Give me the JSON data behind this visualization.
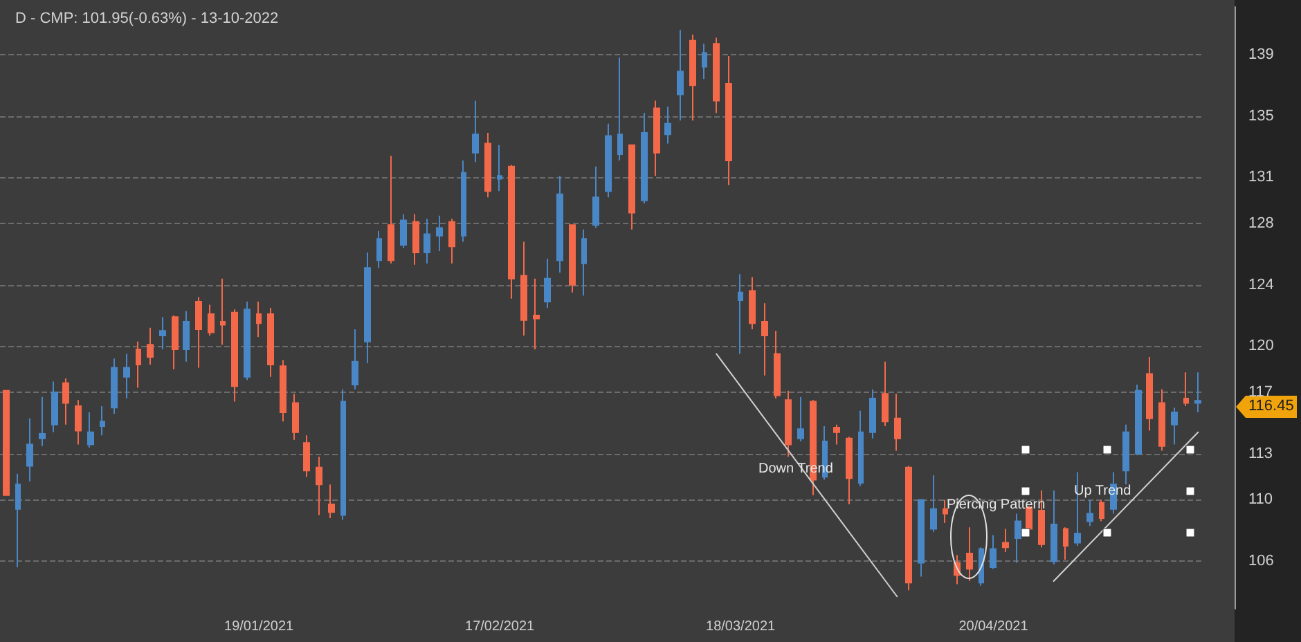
{
  "chart_data": {
    "type": "candlestick",
    "title": "D - CMP: 101.95(-0.63%) - 13-10-2022",
    "categories": [
      null,
      null,
      null,
      null,
      null,
      null,
      null,
      null,
      null,
      null,
      null,
      null,
      null,
      null,
      null,
      null,
      null,
      null,
      null,
      null,
      null,
      "19/01/2021",
      null,
      null,
      null,
      null,
      null,
      null,
      null,
      null,
      null,
      null,
      null,
      null,
      null,
      null,
      null,
      null,
      null,
      null,
      null,
      "17/02/2021",
      null,
      null,
      null,
      null,
      null,
      null,
      null,
      null,
      null,
      null,
      null,
      null,
      null,
      null,
      null,
      null,
      null,
      null,
      null,
      "18/03/2021",
      null,
      null,
      null,
      null,
      null,
      null,
      null,
      null,
      null,
      null,
      null,
      null,
      null,
      null,
      null,
      null,
      null,
      null,
      null,
      null,
      "20/04/2021",
      null,
      null,
      null,
      null,
      null,
      null,
      null,
      null,
      null,
      null,
      null,
      null,
      null,
      null,
      null,
      null,
      null
    ],
    "series": [
      {
        "ohlc": [
          [
            117.1,
            117.1,
            110.3,
            110.3
          ],
          [
            109.4,
            111.7,
            105.6,
            111.0
          ],
          [
            112.2,
            115.3,
            111.2,
            113.6
          ],
          [
            114.0,
            116.7,
            113.5,
            114.3
          ],
          [
            114.9,
            117.7,
            114.4,
            117.0
          ],
          [
            117.6,
            117.9,
            114.9,
            116.3
          ],
          [
            116.1,
            116.5,
            113.6,
            114.5
          ],
          [
            113.6,
            115.7,
            113.4,
            114.4
          ],
          [
            114.8,
            116.1,
            114.2,
            115.1
          ],
          [
            116.0,
            119.2,
            115.6,
            118.6
          ],
          [
            118.0,
            119.5,
            116.6,
            118.6
          ],
          [
            119.8,
            120.3,
            117.3,
            118.8
          ],
          [
            120.1,
            121.2,
            118.8,
            119.3
          ],
          [
            120.7,
            121.9,
            119.8,
            121.0
          ],
          [
            121.9,
            122.0,
            118.5,
            119.8
          ],
          [
            119.8,
            122.3,
            119.0,
            121.6
          ],
          [
            122.9,
            123.2,
            118.6,
            121.1
          ],
          [
            122.1,
            122.7,
            120.7,
            120.9
          ],
          [
            121.6,
            124.4,
            120.1,
            121.4
          ],
          [
            122.2,
            122.4,
            116.4,
            117.4
          ],
          [
            118.0,
            122.9,
            117.8,
            122.4
          ],
          [
            122.1,
            122.9,
            120.6,
            121.5
          ],
          [
            122.1,
            122.5,
            118.0,
            118.8
          ],
          [
            118.7,
            119.1,
            115.1,
            115.7
          ],
          [
            116.3,
            116.9,
            113.9,
            114.4
          ],
          [
            113.7,
            114.2,
            111.5,
            111.9
          ],
          [
            112.1,
            112.8,
            109.0,
            111.0
          ],
          [
            109.7,
            111.0,
            108.8,
            109.2
          ],
          [
            109.0,
            117.2,
            108.7,
            116.4
          ],
          [
            117.5,
            121.1,
            117.2,
            119.0
          ],
          [
            120.3,
            126.1,
            118.9,
            125.1
          ],
          [
            125.6,
            127.5,
            125.1,
            127.0
          ],
          [
            127.9,
            132.4,
            125.4,
            125.6
          ],
          [
            126.6,
            128.6,
            126.4,
            128.2
          ],
          [
            128.1,
            128.6,
            125.3,
            126.1
          ],
          [
            126.1,
            128.3,
            125.4,
            127.3
          ],
          [
            127.2,
            128.5,
            126.2,
            127.7
          ],
          [
            128.1,
            128.3,
            125.4,
            126.5
          ],
          [
            127.2,
            132.1,
            126.8,
            131.3
          ],
          [
            132.6,
            136.0,
            132.0,
            133.8
          ],
          [
            133.2,
            133.9,
            129.7,
            130.1
          ],
          [
            130.9,
            133.1,
            130.1,
            131.1
          ],
          [
            131.7,
            131.8,
            123.1,
            124.4
          ],
          [
            124.6,
            126.8,
            120.7,
            121.7
          ],
          [
            122.0,
            124.4,
            119.8,
            121.8
          ],
          [
            122.9,
            125.7,
            122.5,
            124.4
          ],
          [
            125.6,
            131.1,
            124.8,
            129.9
          ],
          [
            127.9,
            127.9,
            123.5,
            124.0
          ],
          [
            125.4,
            127.6,
            123.3,
            127.0
          ],
          [
            127.9,
            131.7,
            127.7,
            129.7
          ],
          [
            130.1,
            134.5,
            129.7,
            133.7
          ],
          [
            132.5,
            138.8,
            132.1,
            133.8
          ],
          [
            133.1,
            133.1,
            127.6,
            128.7
          ],
          [
            129.5,
            135.2,
            129.3,
            133.9
          ],
          [
            135.5,
            136.0,
            131.1,
            132.6
          ],
          [
            133.8,
            135.6,
            133.2,
            134.5
          ],
          [
            136.4,
            140.6,
            134.7,
            137.9
          ],
          [
            139.9,
            140.3,
            134.7,
            137.0
          ],
          [
            138.2,
            139.7,
            137.4,
            139.1
          ],
          [
            139.7,
            140.1,
            135.2,
            136.0
          ],
          [
            137.1,
            138.9,
            130.5,
            132.1
          ],
          [
            123.0,
            124.7,
            119.5,
            123.5
          ],
          [
            123.6,
            124.5,
            121.1,
            121.5
          ],
          [
            121.6,
            122.8,
            118.1,
            120.7
          ],
          [
            119.5,
            121.0,
            116.6,
            116.8
          ],
          [
            116.5,
            117.1,
            112.8,
            113.6
          ],
          [
            114.0,
            116.7,
            113.8,
            114.6
          ],
          [
            116.4,
            116.5,
            110.3,
            111.3
          ],
          [
            111.5,
            114.8,
            111.3,
            113.8
          ],
          [
            114.7,
            114.9,
            113.6,
            114.4
          ],
          [
            114.0,
            114.1,
            109.7,
            111.4
          ],
          [
            111.1,
            115.8,
            110.9,
            114.4
          ],
          [
            114.4,
            117.2,
            114.0,
            116.6
          ],
          [
            116.9,
            119.0,
            114.8,
            115.1
          ],
          [
            115.3,
            116.9,
            113.2,
            114.0
          ],
          [
            112.1,
            112.2,
            104.1,
            104.6
          ],
          [
            105.9,
            110.0,
            105.0,
            110.0
          ],
          [
            108.1,
            111.6,
            107.9,
            109.4
          ],
          [
            109.4,
            110.0,
            108.5,
            109.1
          ],
          [
            105.9,
            106.4,
            104.5,
            105.1
          ],
          [
            106.5,
            108.2,
            104.7,
            105.5
          ],
          [
            104.6,
            106.9,
            104.4,
            106.8
          ],
          [
            105.6,
            107.7,
            105.5,
            106.8
          ],
          [
            107.2,
            108.1,
            106.6,
            106.9
          ],
          [
            107.5,
            109.1,
            105.9,
            108.6
          ],
          [
            109.5,
            109.6,
            107.9,
            108.1
          ],
          [
            109.3,
            110.6,
            106.9,
            107.1
          ],
          [
            106.0,
            110.6,
            105.8,
            108.4
          ],
          [
            108.1,
            108.2,
            106.1,
            107.0
          ],
          [
            107.2,
            111.8,
            107.0,
            107.8
          ],
          [
            108.6,
            110.0,
            108.3,
            109.1
          ],
          [
            109.8,
            110.0,
            108.6,
            108.8
          ],
          [
            109.4,
            111.8,
            109.1,
            111.0
          ],
          [
            111.9,
            114.9,
            111.0,
            114.4
          ],
          [
            113.0,
            117.5,
            112.9,
            117.1
          ],
          [
            118.2,
            119.3,
            114.5,
            115.3
          ],
          [
            116.3,
            117.2,
            113.2,
            113.5
          ],
          [
            114.9,
            116.0,
            113.6,
            115.7
          ],
          [
            116.6,
            118.3,
            116.1,
            116.3
          ],
          [
            116.3,
            118.3,
            115.7,
            116.45
          ]
        ],
        "colors": [
          "#f4694a",
          "#4a87c6",
          "#4a87c6",
          "#4a87c6",
          "#4a87c6",
          "#f4694a",
          "#f4694a",
          "#4a87c6",
          "#4a87c6",
          "#4a87c6",
          "#4a87c6",
          "#f4694a",
          "#f4694a",
          "#4a87c6",
          "#f4694a",
          "#4a87c6",
          "#f4694a",
          "#f4694a",
          "#f4694a",
          "#f4694a",
          "#4a87c6",
          "#f4694a",
          "#f4694a",
          "#f4694a",
          "#f4694a",
          "#f4694a",
          "#f4694a",
          "#f4694a",
          "#4a87c6",
          "#4a87c6",
          "#4a87c6",
          "#4a87c6",
          "#f4694a",
          "#4a87c6",
          "#f4694a",
          "#4a87c6",
          "#4a87c6",
          "#f4694a",
          "#4a87c6",
          "#4a87c6",
          "#f4694a",
          "#4a87c6",
          "#f4694a",
          "#f4694a",
          "#f4694a",
          "#4a87c6",
          "#4a87c6",
          "#f4694a",
          "#4a87c6",
          "#4a87c6",
          "#4a87c6",
          "#4a87c6",
          "#f4694a",
          "#4a87c6",
          "#f4694a",
          "#4a87c6",
          "#4a87c6",
          "#f4694a",
          "#4a87c6",
          "#f4694a",
          "#f4694a",
          "#4a87c6",
          "#f4694a",
          "#f4694a",
          "#f4694a",
          "#f4694a",
          "#4a87c6",
          "#f4694a",
          "#4a87c6",
          "#f4694a",
          "#f4694a",
          "#4a87c6",
          "#4a87c6",
          "#f4694a",
          "#f4694a",
          "#f4694a",
          "#4a87c6",
          "#4a87c6",
          "#f4694a",
          "#f4694a",
          "#f4694a",
          "#4a87c6",
          "#4a87c6",
          "#f4694a",
          "#4a87c6",
          "#f4694a",
          "#f4694a",
          "#4a87c6",
          "#f4694a",
          "#4a87c6",
          "#4a87c6",
          "#f4694a",
          "#4a87c6",
          "#4a87c6",
          "#4a87c6",
          "#f4694a",
          "#f4694a",
          "#4a87c6",
          "#f4694a",
          "#4a87c6"
        ]
      },
      {
        "type": "line",
        "color": "#d0d0d0",
        "values": [
          null,
          null,
          null,
          null,
          null,
          null,
          null,
          null,
          null,
          null,
          null,
          null,
          null,
          null,
          null,
          null,
          null,
          null,
          null,
          null,
          null,
          null,
          null,
          null,
          null,
          null,
          null,
          null,
          null,
          null,
          null,
          null,
          null,
          null,
          null,
          null,
          null,
          null,
          null,
          null,
          null,
          null,
          null,
          null,
          null,
          null,
          null,
          null,
          null,
          null,
          null,
          null,
          null,
          null,
          null,
          null,
          null,
          null,
          null,
          119.5,
          null,
          null,
          null,
          null,
          null,
          null,
          null,
          null,
          null,
          null,
          null,
          null,
          null,
          null,
          103.7,
          null,
          null,
          null,
          null,
          null,
          null,
          null,
          null,
          null,
          null,
          null,
          null,
          null,
          null,
          null,
          null,
          null,
          null,
          null,
          null,
          null,
          null,
          null,
          null,
          null
        ]
      },
      {
        "type": "line",
        "color": "#d0d0d0",
        "values": [
          null,
          null,
          null,
          null,
          null,
          null,
          null,
          null,
          null,
          null,
          null,
          null,
          null,
          null,
          null,
          null,
          null,
          null,
          null,
          null,
          null,
          null,
          null,
          null,
          null,
          null,
          null,
          null,
          null,
          null,
          null,
          null,
          null,
          null,
          null,
          null,
          null,
          null,
          null,
          null,
          null,
          null,
          null,
          null,
          null,
          null,
          null,
          null,
          null,
          null,
          null,
          null,
          null,
          null,
          null,
          null,
          null,
          null,
          null,
          null,
          null,
          null,
          null,
          null,
          null,
          null,
          null,
          null,
          null,
          null,
          null,
          null,
          null,
          null,
          null,
          null,
          null,
          null,
          null,
          null,
          null,
          null,
          null,
          null,
          null,
          null,
          null,
          104.7,
          null,
          null,
          null,
          null,
          null,
          null,
          null,
          null,
          null,
          null,
          null,
          114.4
        ]
      }
    ],
    "ylim": [
      102.9,
      142.1
    ],
    "yticks": [
      106,
      110,
      113,
      117,
      120,
      124,
      128,
      131,
      135,
      139
    ],
    "grid": "y",
    "line_style": "solid",
    "annotations": [
      "Down Trend",
      "Piercing Pattern",
      "Up Trend",
      "116.45"
    ]
  }
}
